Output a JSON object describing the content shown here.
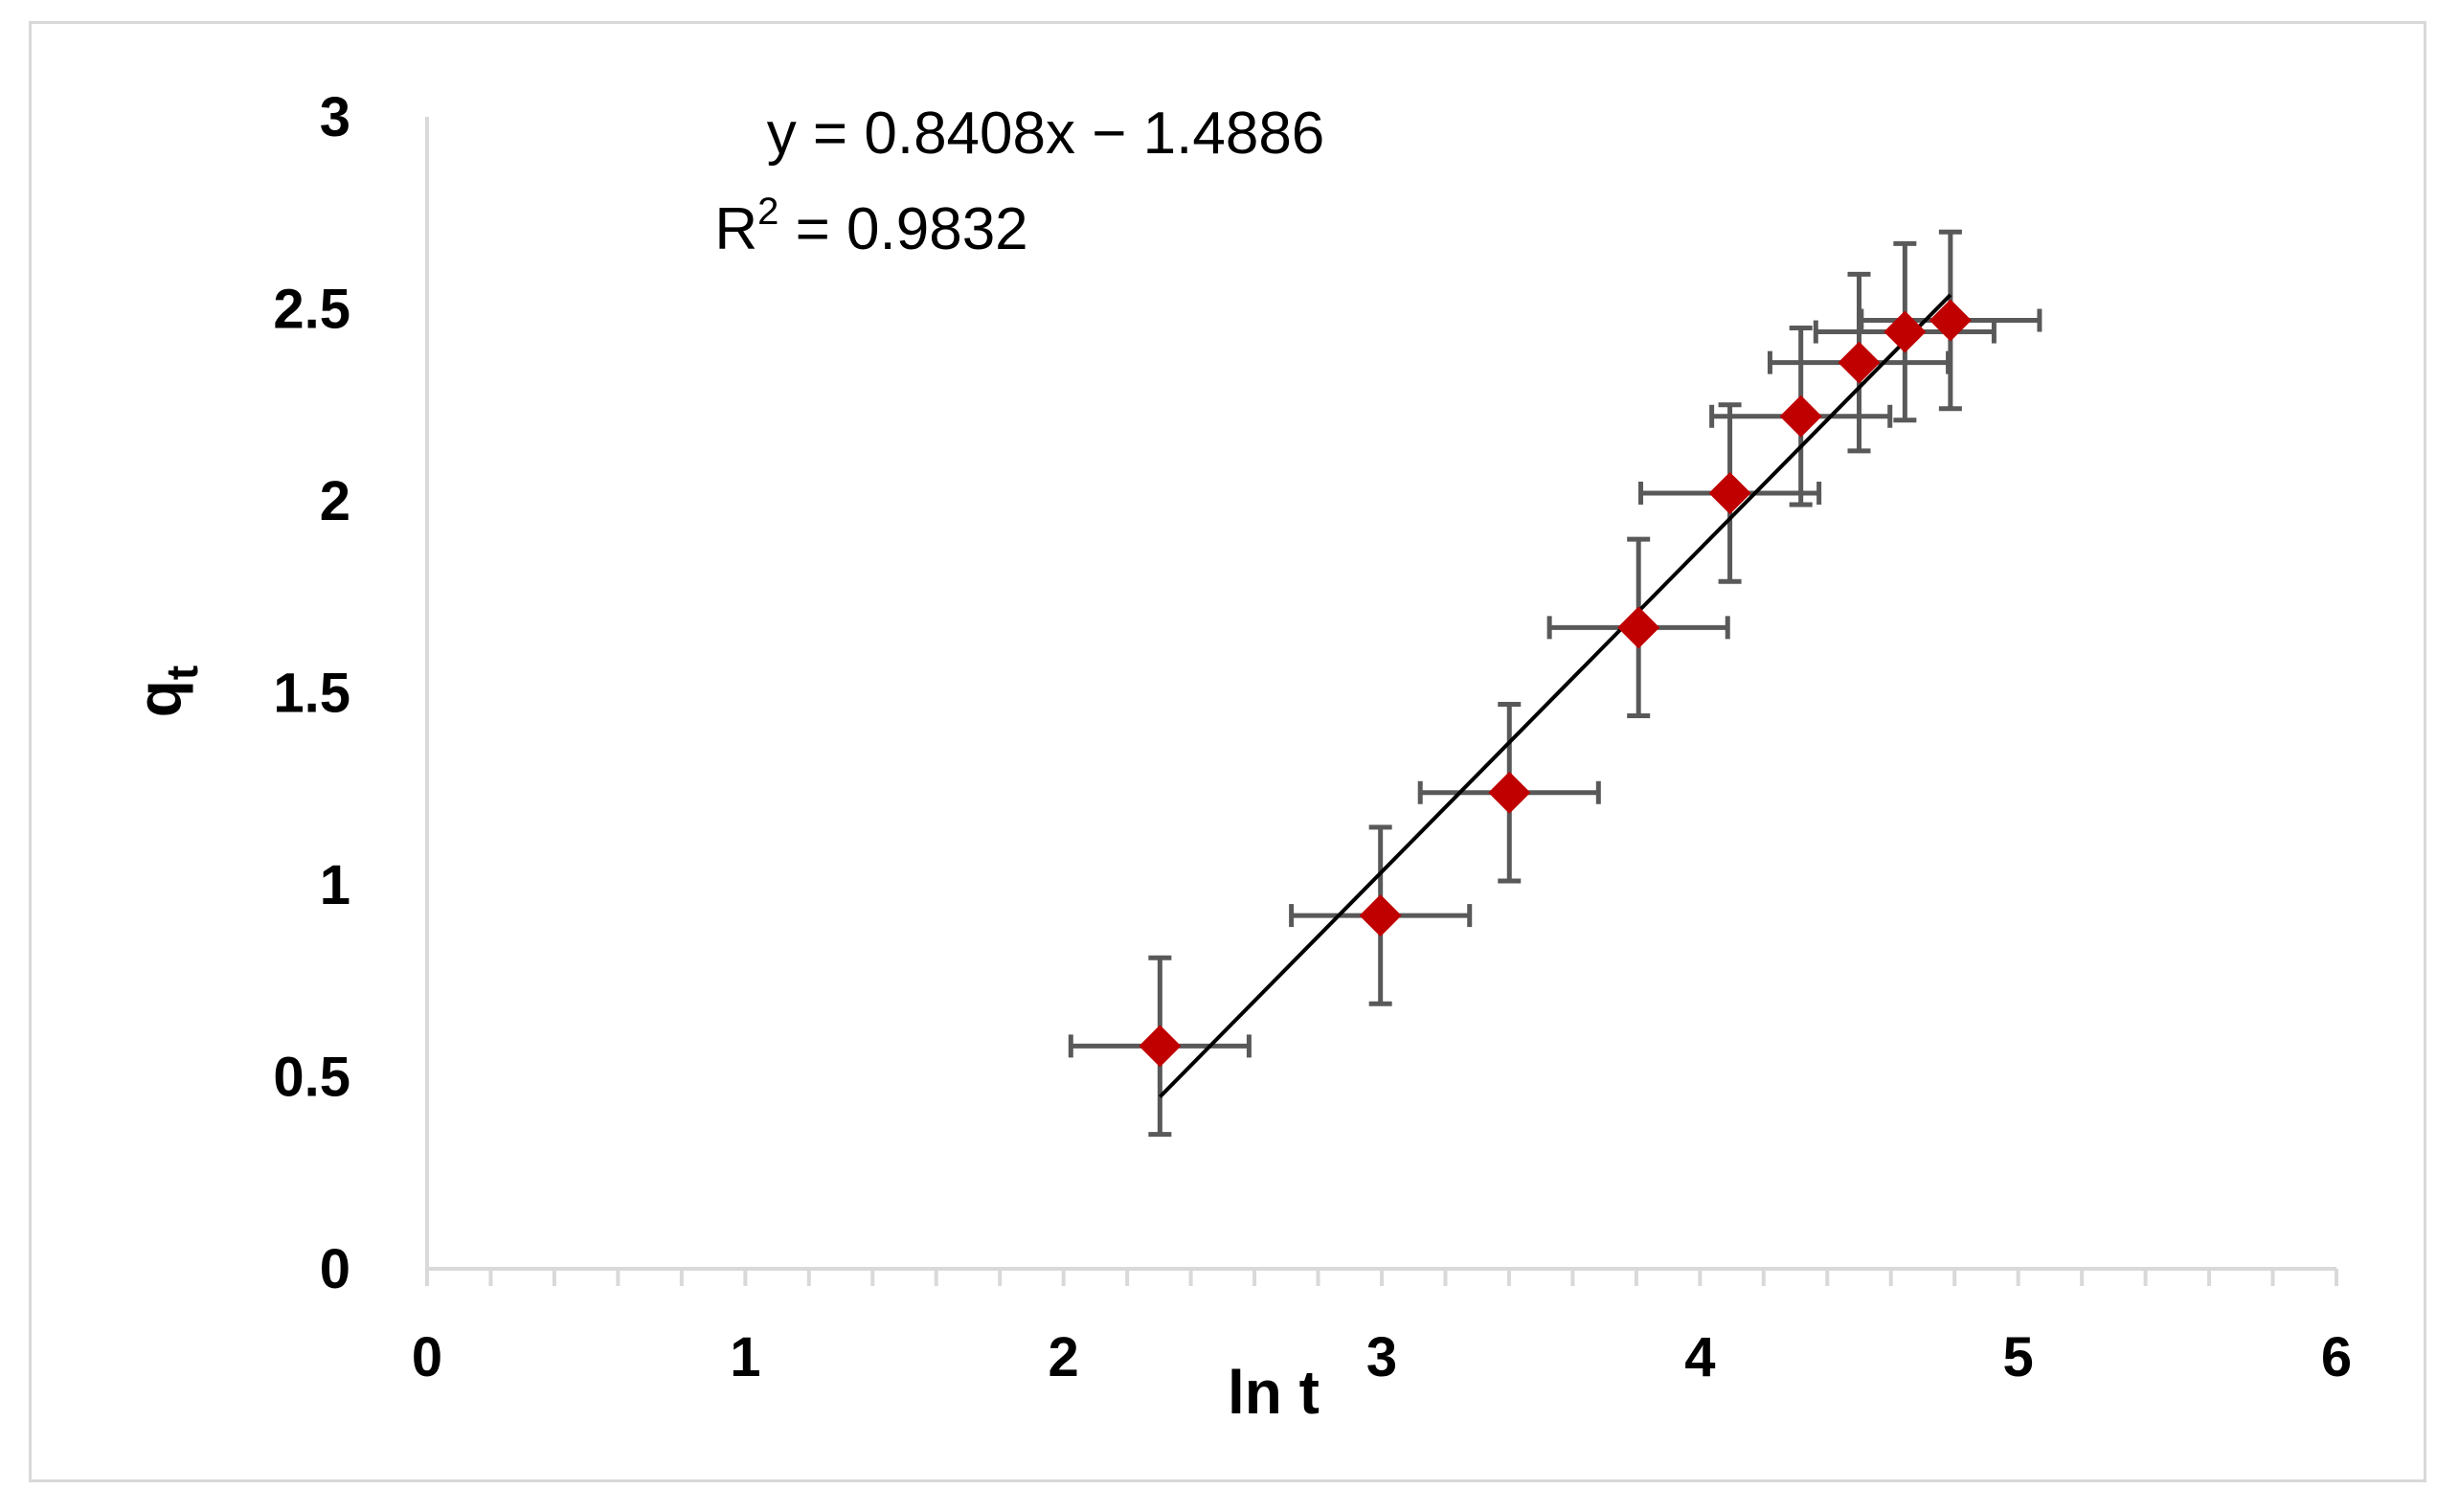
{
  "chart_data": {
    "type": "scatter",
    "xlabel": "ln t",
    "ylabel": "q",
    "ylabel_subscript": "t",
    "xlim": [
      0,
      6
    ],
    "ylim": [
      0,
      3
    ],
    "x_ticks": [
      0,
      1,
      2,
      3,
      4,
      5,
      6
    ],
    "y_ticks": [
      0,
      0.5,
      1,
      1.5,
      2,
      2.5,
      3
    ],
    "x_tick_labels": [
      "0",
      "1",
      "2",
      "3",
      "4",
      "5",
      "6"
    ],
    "y_tick_labels": [
      "0",
      "0.5",
      "1",
      "1.5",
      "2",
      "2.5",
      "3"
    ],
    "grid": false,
    "legend": "none",
    "series": [
      {
        "marker": "diamond",
        "color": "#c00000",
        "x": [
          2.303,
          2.996,
          3.401,
          3.807,
          4.094,
          4.317,
          4.5,
          4.644,
          4.787
        ],
        "y": [
          0.58,
          0.92,
          1.24,
          1.67,
          2.02,
          2.22,
          2.36,
          2.44,
          2.47
        ],
        "x_error": [
          0.28,
          0.28,
          0.28,
          0.28,
          0.28,
          0.28,
          0.28,
          0.28,
          0.28
        ],
        "y_error": [
          0.23,
          0.23,
          0.23,
          0.23,
          0.23,
          0.23,
          0.23,
          0.23,
          0.23
        ],
        "error_bar_color": "#595959"
      }
    ],
    "trendline": {
      "type": "linear",
      "slope": 0.8408,
      "intercept": -1.4886,
      "x_range": [
        2.303,
        4.787
      ],
      "color": "#000000"
    },
    "annotations": {
      "equation": "y = 0.8408x − 1.4886",
      "r_squared_prefix": "R",
      "r_squared_sup": "2",
      "r_squared_value": " = 0.9832"
    }
  }
}
